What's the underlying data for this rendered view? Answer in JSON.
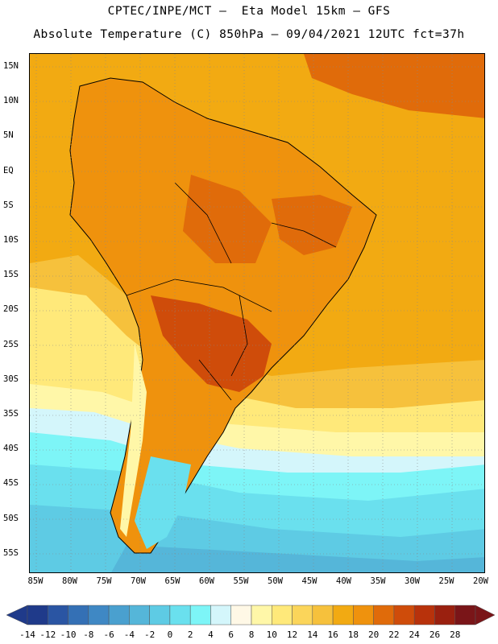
{
  "header": {
    "title_line1": "CPTEC/INPE/MCT –  Eta Model 15km – GFS",
    "title_line2": "Absolute Temperature (C) 850hPa – 09/04/2021 12UTC fct=37h"
  },
  "map": {
    "projection": "cylindrical",
    "lon_range": [
      -86,
      -20
    ],
    "lat_range": [
      -58,
      16
    ],
    "gridlines": "dotted",
    "lat_labels": [
      "15N",
      "10N",
      "5N",
      "EQ",
      "5S",
      "10S",
      "15S",
      "20S",
      "25S",
      "30S",
      "35S",
      "40S",
      "45S",
      "50S",
      "55S"
    ],
    "lon_labels": [
      "85W",
      "80W",
      "75W",
      "70W",
      "65W",
      "60W",
      "55W",
      "50W",
      "45W",
      "40W",
      "35W",
      "30W",
      "25W",
      "20W"
    ]
  },
  "colorbar": {
    "labels": [
      "-14",
      "-12",
      "-10",
      "-8",
      "-6",
      "-4",
      "-2",
      "0",
      "2",
      "4",
      "6",
      "8",
      "10",
      "12",
      "14",
      "16",
      "18",
      "20",
      "22",
      "24",
      "26",
      "28"
    ],
    "colors": [
      "#1f3a8a",
      "#2a55a3",
      "#3470b5",
      "#3f88c4",
      "#4aa0cf",
      "#55b6d9",
      "#5ecbe4",
      "#6ae0ee",
      "#7df5f7",
      "#d4f6fb",
      "#fff8e6",
      "#fff7a8",
      "#ffe97a",
      "#fbd55a",
      "#f6c13c",
      "#f2aa12",
      "#ef920d",
      "#e06b0a",
      "#cf4c0a",
      "#b8320b",
      "#9a200f",
      "#7a1518"
    ]
  }
}
